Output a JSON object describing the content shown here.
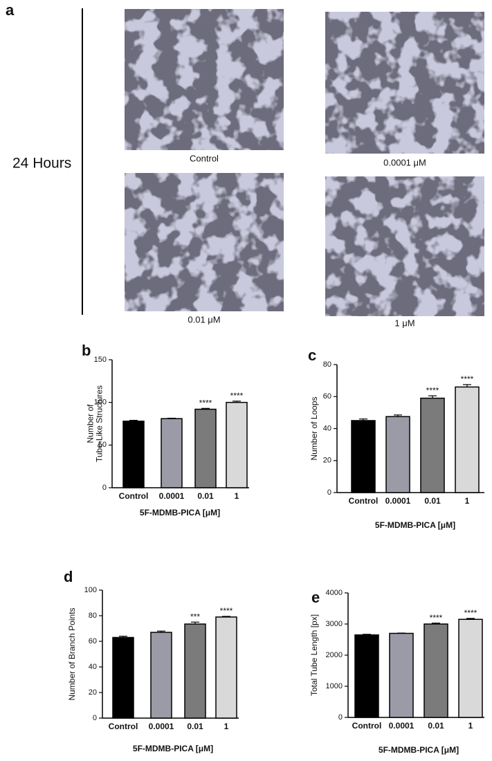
{
  "panel_a": {
    "panel_label": "a",
    "row_label": "24 Hours",
    "images": [
      {
        "label": "Control"
      },
      {
        "label": "0.0001 μM"
      },
      {
        "label": "0.01 μM"
      },
      {
        "label": "1 μM"
      }
    ]
  },
  "chart_data": [
    {
      "type": "bar",
      "panel_label": "b",
      "y_label_lines": [
        "Number of",
        "Tube-Like Structures"
      ],
      "x_label": "5F-MDMB-PICA [μM]",
      "categories": [
        "Control",
        "0.0001",
        "0.01",
        "1"
      ],
      "values": [
        78,
        81,
        92,
        100
      ],
      "errors": [
        1,
        0.5,
        1,
        1.5
      ],
      "annotations": [
        null,
        null,
        "****",
        "****"
      ],
      "colors": [
        "#000000",
        "#9b9ba8",
        "#7b7b7b",
        "#d9d9d9"
      ],
      "ylim": [
        0,
        150
      ],
      "yticks": [
        0,
        50,
        100,
        150
      ]
    },
    {
      "type": "bar",
      "panel_label": "c",
      "y_label_lines": [
        "Number of Loops"
      ],
      "x_label": "5F-MDMB-PICA [μM]",
      "categories": [
        "Control",
        "0.0001",
        "0.01",
        "1"
      ],
      "values": [
        45,
        47.5,
        59,
        66
      ],
      "errors": [
        1,
        1,
        1.5,
        1.5
      ],
      "annotations": [
        null,
        null,
        "****",
        "****"
      ],
      "colors": [
        "#000000",
        "#9b9ba8",
        "#7b7b7b",
        "#d9d9d9"
      ],
      "ylim": [
        0,
        80
      ],
      "yticks": [
        0,
        20,
        40,
        60,
        80
      ]
    },
    {
      "type": "bar",
      "panel_label": "d",
      "y_label_lines": [
        "Number of Branch Points"
      ],
      "x_label": "5F-MDMB-PICA [μM]",
      "categories": [
        "Control",
        "0.0001",
        "0.01",
        "1"
      ],
      "values": [
        63,
        67,
        73.5,
        79
      ],
      "errors": [
        1,
        1,
        1.5,
        0.5
      ],
      "annotations": [
        null,
        null,
        "***",
        "****"
      ],
      "colors": [
        "#000000",
        "#9b9ba8",
        "#7b7b7b",
        "#d9d9d9"
      ],
      "ylim": [
        0,
        100
      ],
      "yticks": [
        0,
        20,
        40,
        60,
        80,
        100
      ]
    },
    {
      "type": "bar",
      "panel_label": "e",
      "y_label_lines": [
        "Total Tube Length [px]"
      ],
      "x_label": "5F-MDMB-PICA [μM]",
      "categories": [
        "Control",
        "0.0001",
        "0.01",
        "1"
      ],
      "values": [
        2650,
        2700,
        3000,
        3150
      ],
      "errors": [
        20,
        10,
        30,
        30
      ],
      "annotations": [
        null,
        null,
        "****",
        "****"
      ],
      "colors": [
        "#000000",
        "#9b9ba8",
        "#7b7b7b",
        "#d9d9d9"
      ],
      "ylim": [
        0,
        4000
      ],
      "yticks": [
        0,
        1000,
        2000,
        3000,
        4000
      ]
    }
  ]
}
